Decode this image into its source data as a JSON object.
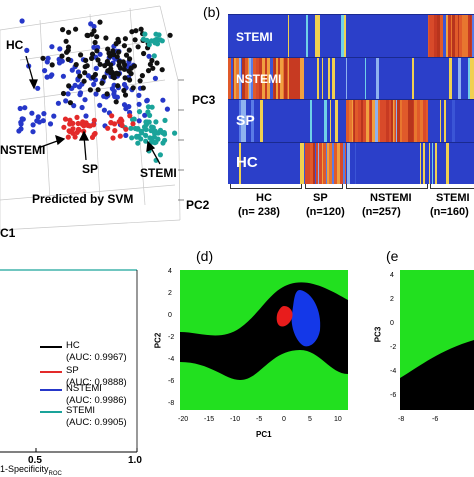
{
  "panel_labels": {
    "b": "(b)",
    "d": "(d)",
    "e": "(e"
  },
  "panel_a": {
    "labels": {
      "hc": "HC",
      "nstemi": "NSTEMI",
      "sp": "SP",
      "stemi": "STEMI",
      "predicted": "Predicted by SVM"
    },
    "axes": {
      "pc3": "PC3",
      "pc2": "PC2",
      "pc1": "C1"
    },
    "colors": {
      "hc": "#111111",
      "sp": "#e32a2a",
      "nstemi": "#2637c9",
      "stemi": "#1aa39a"
    }
  },
  "panel_b": {
    "rows": [
      "STEMI",
      "NSTEMI",
      "SP",
      "HC"
    ],
    "groups": [
      {
        "name": "HC",
        "n": "(n= 238)"
      },
      {
        "name": "SP",
        "n": "(n=120)"
      },
      {
        "name": "NSTEMI",
        "n": "(n=257)"
      },
      {
        "name": "STEMI",
        "n": "(n=160)"
      }
    ]
  },
  "panel_c": {
    "legend": [
      {
        "name": "HC",
        "auc": "(AUC: 0.9967)",
        "color": "#000000"
      },
      {
        "name": "SP",
        "auc": "(AUC: 0.9888)",
        "color": "#e32a2a"
      },
      {
        "name": "NSTEMI",
        "auc": "(AUC: 0.9986)",
        "color": "#2637c9"
      },
      {
        "name": "STEMI",
        "auc": "(AUC: 0.9905)",
        "color": "#1aa39a"
      }
    ],
    "xticks": [
      "0.5",
      "1.0"
    ],
    "xlabel_main": "1-Specificity",
    "xlabel_sub": "ROC"
  },
  "panel_d": {
    "ylabel": "PC2",
    "xlabel": "PC1",
    "xticks": [
      "-20",
      "-15",
      "-10",
      "-5",
      "0",
      "5",
      "10"
    ],
    "yticks": [
      "4",
      "2",
      "0",
      "-2",
      "-4",
      "-6",
      "-8"
    ]
  },
  "panel_e": {
    "ylabel": "PC3",
    "xticks": [
      "-8",
      "-6"
    ],
    "yticks": [
      "4",
      "2",
      "0",
      "-2",
      "-4",
      "-6"
    ]
  }
}
